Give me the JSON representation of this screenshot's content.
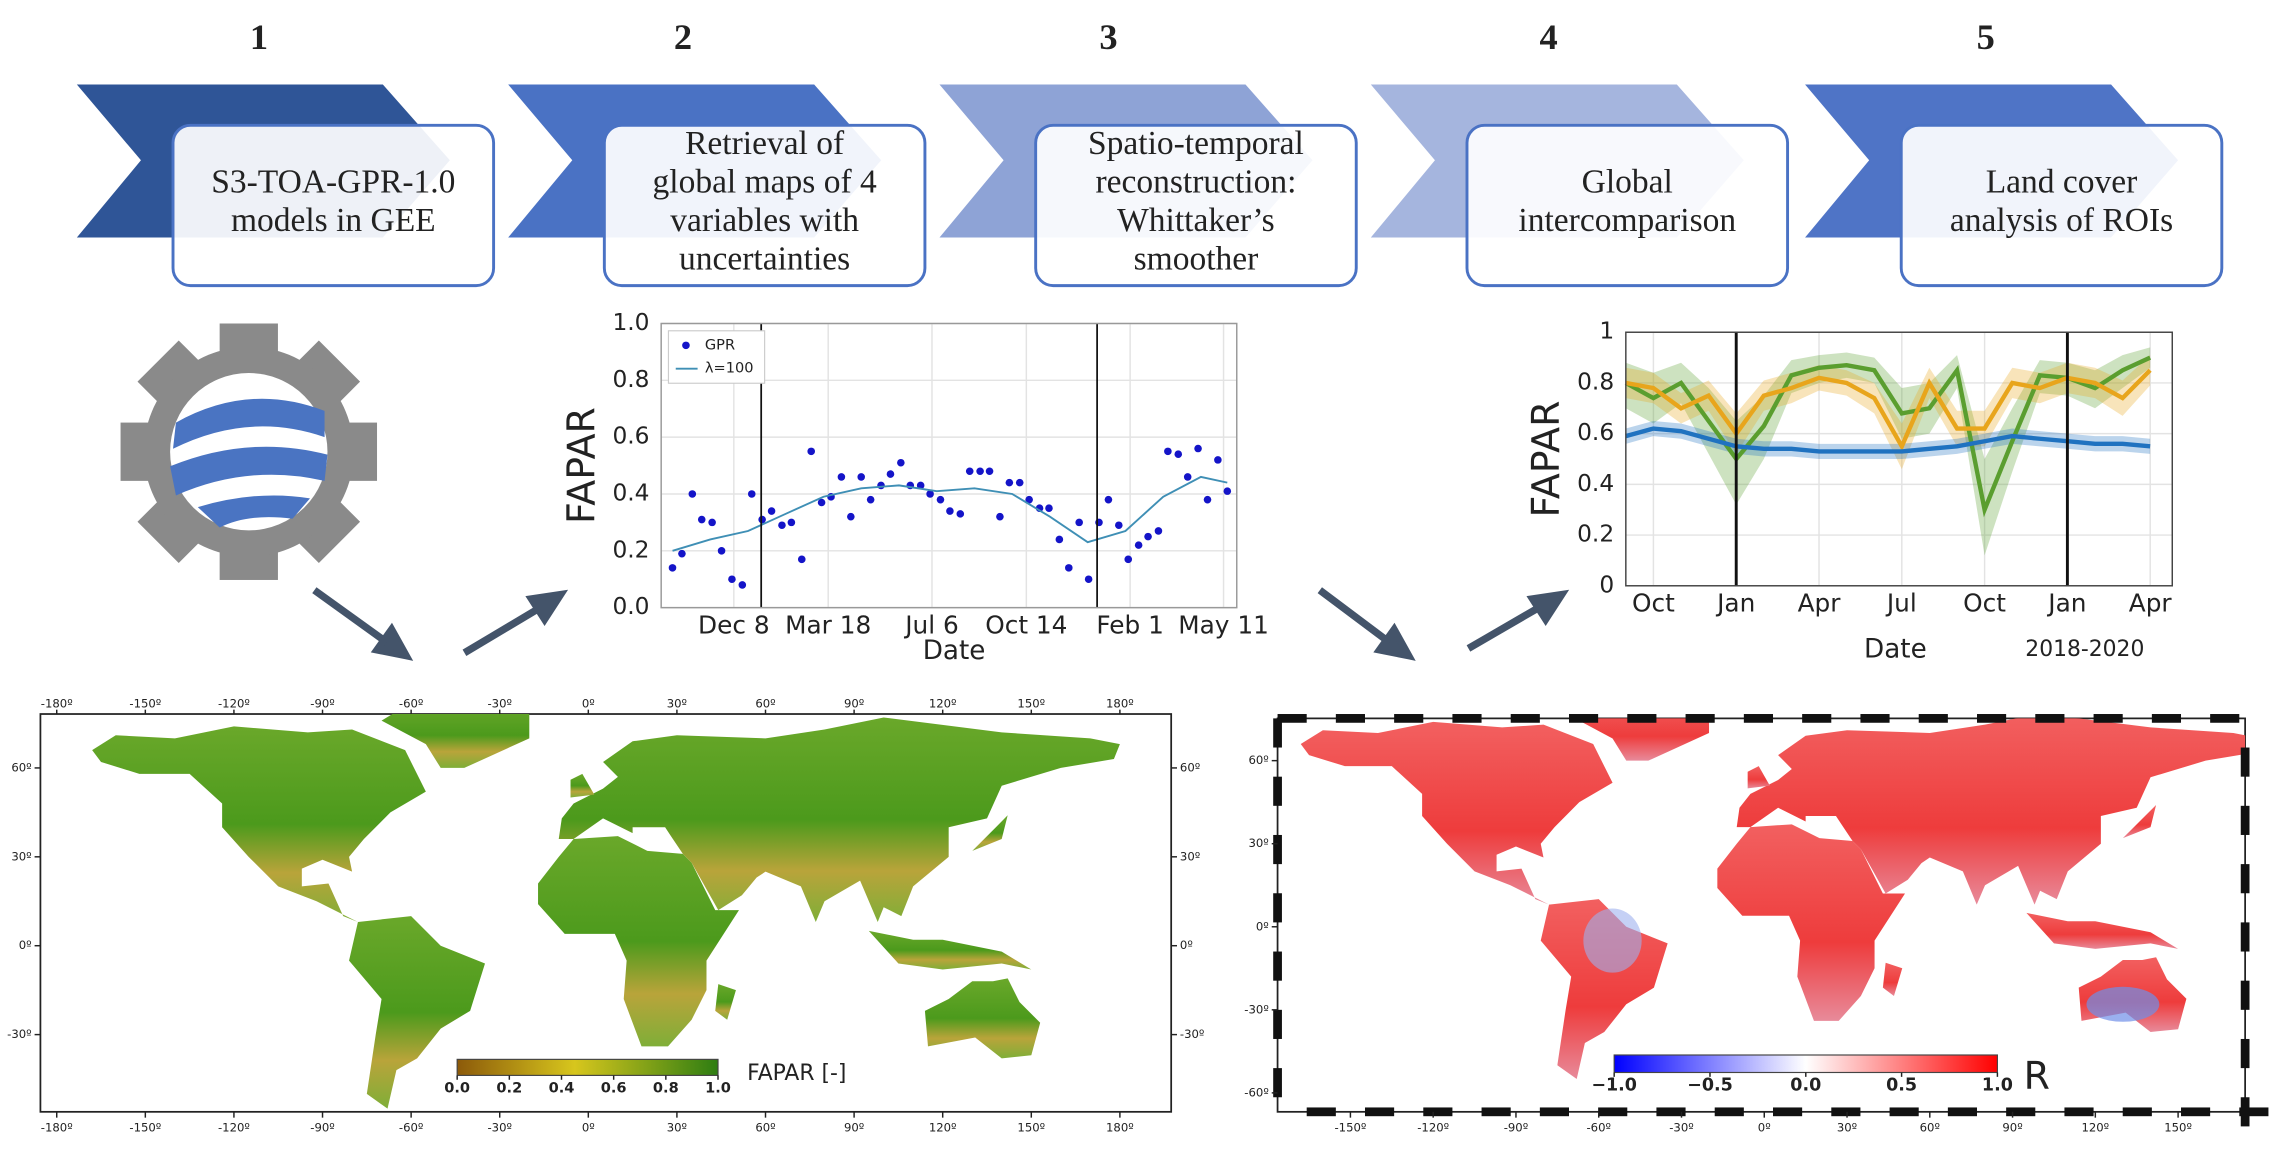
{
  "steps": [
    {
      "number": "1",
      "lines": [
        "S3-TOA-GPR-1.0",
        "models in GEE"
      ]
    },
    {
      "number": "2",
      "lines": [
        "Retrieval of",
        "global maps of 4",
        "variables with",
        "uncertainties"
      ]
    },
    {
      "number": "3",
      "lines": [
        "Spatio-temporal",
        "reconstruction:",
        "Whittaker’s",
        "smoother"
      ]
    },
    {
      "number": "4",
      "lines": [
        "Global",
        "intercomparison"
      ]
    },
    {
      "number": "5",
      "lines": [
        "Land cover",
        "analysis of ROIs"
      ]
    }
  ],
  "chart_data": [
    {
      "type": "scatter",
      "ylabel": "FAPAR",
      "xlabel": "Date",
      "xlim": [
        -77,
        533
      ],
      "xticks": [
        {
          "value": 0,
          "label": "Dec 8"
        },
        {
          "value": 100,
          "label": "Mar 18"
        },
        {
          "value": 210,
          "label": "Jul 6"
        },
        {
          "value": 310,
          "label": "Oct 14"
        },
        {
          "value": 420,
          "label": "Feb 1"
        },
        {
          "value": 519,
          "label": "May 11"
        }
      ],
      "ylim": [
        0,
        1
      ],
      "yticks": [
        {
          "value": 0,
          "label": "0.0"
        },
        {
          "value": 0.2,
          "label": "0.2"
        },
        {
          "value": 0.4,
          "label": "0.4"
        },
        {
          "value": 0.6,
          "label": "0.6"
        },
        {
          "value": 0.8,
          "label": "0.8"
        },
        {
          "value": 1,
          "label": "1.0"
        }
      ],
      "grid": true,
      "legend": "upper left",
      "vlines": [
        29,
        385
      ],
      "series": [
        {
          "name": "GPR",
          "color": "#1414c8",
          "x": [
            -65,
            -55,
            -44,
            -34,
            -23,
            -13,
            -2,
            9,
            19,
            30,
            40,
            51,
            61,
            72,
            82,
            93,
            103,
            114,
            124,
            135,
            145,
            156,
            166,
            177,
            187,
            198,
            208,
            219,
            229,
            240,
            250,
            261,
            271,
            282,
            292,
            303,
            313,
            324,
            334,
            345,
            355,
            366,
            376,
            387,
            397,
            408,
            418,
            429,
            439,
            450,
            460,
            471,
            481,
            492,
            502,
            513,
            523
          ],
          "values": [
            0.14,
            0.19,
            0.4,
            0.31,
            0.3,
            0.2,
            0.1,
            0.08,
            0.4,
            0.31,
            0.34,
            0.29,
            0.3,
            0.17,
            0.55,
            0.37,
            0.39,
            0.46,
            0.32,
            0.46,
            0.38,
            0.43,
            0.47,
            0.51,
            0.43,
            0.43,
            0.4,
            0.38,
            0.34,
            0.33,
            0.48,
            0.48,
            0.48,
            0.32,
            0.44,
            0.44,
            0.38,
            0.35,
            0.35,
            0.24,
            0.14,
            0.3,
            0.1,
            0.3,
            0.38,
            0.29,
            0.17,
            0.22,
            0.25,
            0.27,
            0.55,
            0.54,
            0.46,
            0.56,
            0.38,
            0.52,
            0.41
          ]
        },
        {
          "name": "λ=100",
          "color": "#3f8fb5",
          "x": [
            -65,
            -25,
            15,
            55,
            95,
            135,
            175,
            215,
            255,
            295,
            335,
            375,
            415,
            455,
            495,
            523
          ],
          "values": [
            0.2,
            0.24,
            0.27,
            0.33,
            0.39,
            0.42,
            0.43,
            0.41,
            0.42,
            0.4,
            0.32,
            0.23,
            0.27,
            0.39,
            0.46,
            0.44
          ]
        }
      ]
    },
    {
      "type": "line",
      "ylabel": "FAPAR",
      "xlabel": "Date",
      "annotation": "2018-2020",
      "xlim": [
        -1,
        18.8
      ],
      "xticks": [
        {
          "value": 0,
          "label": "Oct"
        },
        {
          "value": 3,
          "label": "Jan"
        },
        {
          "value": 6,
          "label": "Apr"
        },
        {
          "value": 9,
          "label": "Jul"
        },
        {
          "value": 12,
          "label": "Oct"
        },
        {
          "value": 15,
          "label": "Jan"
        },
        {
          "value": 18,
          "label": "Apr"
        }
      ],
      "ylim": [
        0,
        1
      ],
      "yticks": [
        0,
        0.2,
        0.4,
        0.6,
        0.8,
        1
      ],
      "grid": true,
      "vlines": [
        3,
        15
      ],
      "x": [
        -1,
        0,
        1,
        2,
        3,
        4,
        5,
        6,
        7,
        8,
        9,
        10,
        11,
        12,
        13,
        14,
        15,
        16,
        17,
        18
      ],
      "series": [
        {
          "color": "#5a9e2f",
          "values": [
            0.8,
            0.74,
            0.8,
            0.65,
            0.5,
            0.63,
            0.83,
            0.86,
            0.87,
            0.85,
            0.68,
            0.7,
            0.85,
            0.3,
            0.57,
            0.83,
            0.82,
            0.78,
            0.85,
            0.9
          ],
          "lower": [
            0.7,
            0.64,
            0.72,
            0.52,
            0.32,
            0.5,
            0.76,
            0.8,
            0.82,
            0.8,
            0.58,
            0.6,
            0.78,
            0.12,
            0.45,
            0.76,
            0.75,
            0.7,
            0.78,
            0.86
          ],
          "upper": [
            0.88,
            0.84,
            0.88,
            0.78,
            0.65,
            0.75,
            0.89,
            0.91,
            0.92,
            0.9,
            0.78,
            0.8,
            0.91,
            0.5,
            0.7,
            0.89,
            0.88,
            0.85,
            0.91,
            0.94
          ]
        },
        {
          "color": "#e8a51c",
          "values": [
            0.8,
            0.78,
            0.7,
            0.75,
            0.6,
            0.75,
            0.78,
            0.82,
            0.8,
            0.74,
            0.55,
            0.8,
            0.62,
            0.62,
            0.8,
            0.78,
            0.82,
            0.8,
            0.74,
            0.85
          ],
          "lower": [
            0.74,
            0.72,
            0.64,
            0.69,
            0.52,
            0.69,
            0.72,
            0.77,
            0.75,
            0.68,
            0.46,
            0.74,
            0.55,
            0.55,
            0.74,
            0.72,
            0.76,
            0.74,
            0.67,
            0.79
          ],
          "upper": [
            0.86,
            0.84,
            0.76,
            0.81,
            0.68,
            0.81,
            0.84,
            0.87,
            0.85,
            0.8,
            0.64,
            0.86,
            0.69,
            0.69,
            0.86,
            0.84,
            0.88,
            0.86,
            0.81,
            0.91
          ]
        },
        {
          "color": "#1f72c0",
          "values": [
            0.59,
            0.62,
            0.61,
            0.58,
            0.55,
            0.54,
            0.54,
            0.53,
            0.53,
            0.53,
            0.53,
            0.54,
            0.55,
            0.57,
            0.59,
            0.58,
            0.57,
            0.56,
            0.56,
            0.55
          ],
          "lower": [
            0.56,
            0.59,
            0.58,
            0.55,
            0.52,
            0.51,
            0.51,
            0.5,
            0.5,
            0.5,
            0.5,
            0.51,
            0.52,
            0.54,
            0.56,
            0.55,
            0.54,
            0.53,
            0.53,
            0.52
          ],
          "upper": [
            0.62,
            0.65,
            0.64,
            0.61,
            0.58,
            0.57,
            0.57,
            0.56,
            0.56,
            0.56,
            0.56,
            0.57,
            0.58,
            0.6,
            0.62,
            0.61,
            0.6,
            0.59,
            0.59,
            0.58
          ]
        }
      ]
    }
  ],
  "maps": [
    {
      "lon_ticks": [
        {
          "value": -180,
          "label": "-180º"
        },
        {
          "value": -150,
          "label": "-150º"
        },
        {
          "value": -120,
          "label": "-120º"
        },
        {
          "value": -90,
          "label": "-90º"
        },
        {
          "value": -60,
          "label": "-60º"
        },
        {
          "value": -30,
          "label": "-30º"
        },
        {
          "value": 0,
          "label": "0º"
        },
        {
          "value": 30,
          "label": "30º"
        },
        {
          "value": 60,
          "label": "60º"
        },
        {
          "value": 90,
          "label": "90º"
        },
        {
          "value": 120,
          "label": "120º"
        },
        {
          "value": 150,
          "label": "150º"
        },
        {
          "value": 180,
          "label": "180º"
        }
      ],
      "lat_ticks": [
        {
          "value": 60,
          "label": "60º"
        },
        {
          "value": 30,
          "label": "30º"
        },
        {
          "value": 0,
          "label": "0º"
        },
        {
          "value": -30,
          "label": "-30º"
        }
      ],
      "colorbar": {
        "ticks": [
          {
            "value": 0,
            "label": "0.0"
          },
          {
            "value": 0.2,
            "label": "0.2"
          },
          {
            "value": 0.4,
            "label": "0.4"
          },
          {
            "value": 0.6,
            "label": "0.6"
          },
          {
            "value": 0.8,
            "label": "0.8"
          },
          {
            "value": 1,
            "label": "1.0"
          }
        ],
        "range": [
          0,
          1
        ],
        "label": "FAPAR [-]"
      }
    },
    {
      "lon_ticks": [
        {
          "value": -150,
          "label": "-150º"
        },
        {
          "value": -120,
          "label": "-120º"
        },
        {
          "value": -90,
          "label": "-90º"
        },
        {
          "value": -60,
          "label": "-60º"
        },
        {
          "value": -30,
          "label": "-30º"
        },
        {
          "value": 0,
          "label": "0º"
        },
        {
          "value": 30,
          "label": "30º"
        },
        {
          "value": 60,
          "label": "60º"
        },
        {
          "value": 90,
          "label": "90º"
        },
        {
          "value": 120,
          "label": "120º"
        },
        {
          "value": 150,
          "label": "150º"
        }
      ],
      "lat_ticks": [
        {
          "value": 60,
          "label": "60º"
        },
        {
          "value": 30,
          "label": "30º"
        },
        {
          "value": 0,
          "label": "0º"
        },
        {
          "value": -30,
          "label": "-30º"
        },
        {
          "value": -60,
          "label": "-60º"
        }
      ],
      "colorbar": {
        "ticks": [
          {
            "value": -1,
            "label": "−1.0"
          },
          {
            "value": -0.5,
            "label": "−0.5"
          },
          {
            "value": 0,
            "label": "0.0"
          },
          {
            "value": 0.5,
            "label": "0.5"
          },
          {
            "value": 1,
            "label": "1.0"
          }
        ],
        "range": [
          -1,
          1
        ],
        "label": "R"
      }
    }
  ]
}
